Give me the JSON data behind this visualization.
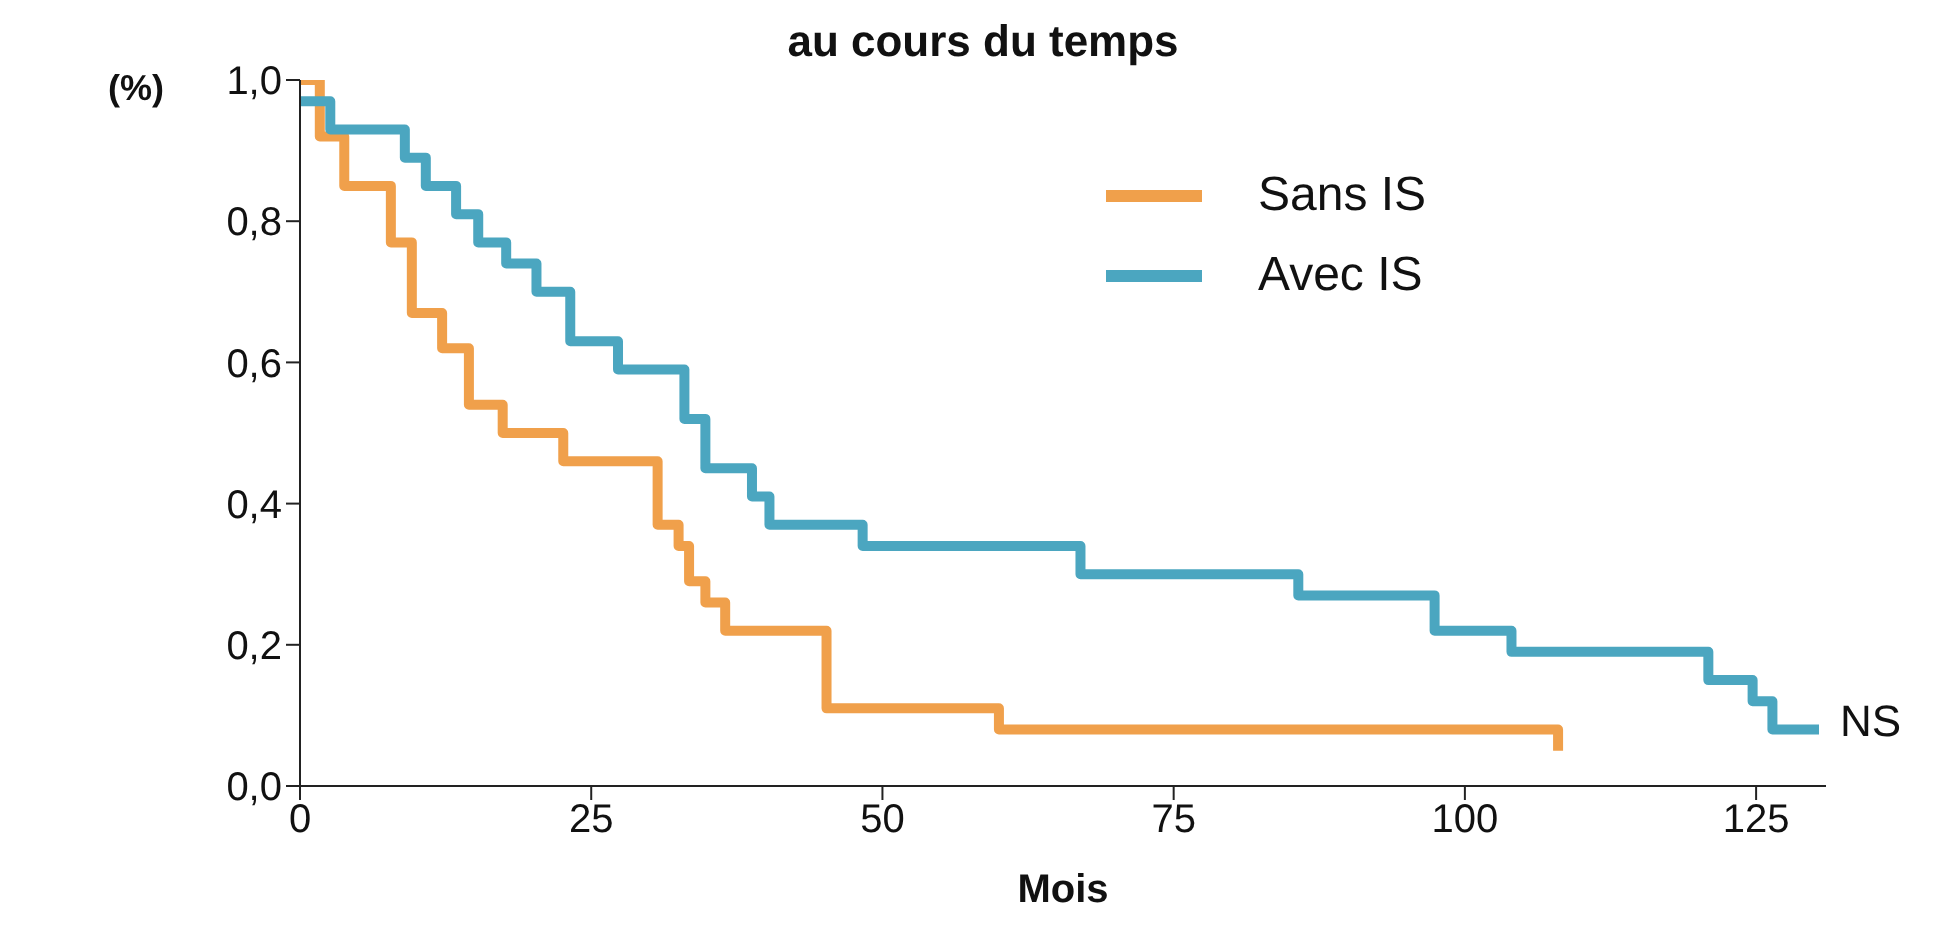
{
  "chart_data": {
    "type": "step",
    "title": "au cours du temps",
    "xlabel": "Mois",
    "ylabel": "(%)",
    "series": [
      {
        "name": "Sans IS",
        "color": "#f0a04b",
        "x": [
          0,
          1.7,
          3.8,
          7.8,
          9.6,
          12.2,
          14.5,
          17.4,
          22.6,
          30.7,
          32.5,
          33.4,
          34.8,
          36.5,
          45.2,
          60,
          108
        ],
        "values": [
          1,
          0.92,
          0.85,
          0.77,
          0.67,
          0.62,
          0.54,
          0.5,
          0.46,
          0.37,
          0.34,
          0.29,
          0.26,
          0.22,
          0.11,
          0.08,
          0.05
        ]
      },
      {
        "name": "Avec IS",
        "color": "#4ba6c0",
        "x": [
          0,
          2.6,
          9,
          10.8,
          13.4,
          15.3,
          17.7,
          20.3,
          23.2,
          27.3,
          33,
          34.8,
          38.8,
          40.3,
          48.3,
          67,
          85.7,
          97.4,
          104,
          120.9,
          124.7,
          126.4,
          130.4
        ],
        "values": [
          0.97,
          0.93,
          0.89,
          0.85,
          0.81,
          0.77,
          0.74,
          0.7,
          0.63,
          0.59,
          0.52,
          0.45,
          0.41,
          0.37,
          0.34,
          0.3,
          0.27,
          0.22,
          0.19,
          0.15,
          0.12,
          0.08,
          0.08
        ]
      }
    ],
    "xlim": [
      0,
      131
    ],
    "xticks": [
      0,
      25,
      50,
      75,
      100,
      125
    ],
    "ylim": [
      0,
      1
    ],
    "yticks": [
      {
        "value": 0,
        "label": "0,0"
      },
      {
        "value": 0.2,
        "label": "0,2"
      },
      {
        "value": 0.4,
        "label": "0,4"
      },
      {
        "value": 0.6,
        "label": "0,6"
      },
      {
        "value": 0.8,
        "label": "0,8"
      },
      {
        "value": 1,
        "label": "1,0"
      }
    ],
    "grid": false,
    "legend": "top right",
    "line_style": "solid",
    "marker": "none",
    "annotations": [
      "NS"
    ]
  }
}
